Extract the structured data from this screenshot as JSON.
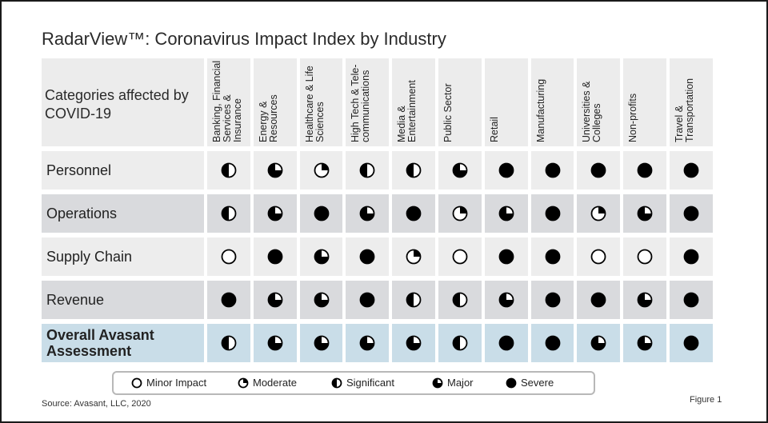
{
  "title": "RadarView™: Coronavirus Impact Index by Industry",
  "category_header": "Categories affected by COVID-19",
  "columns": [
    "Banking, Financial Services & Insurance",
    "Energy & Resources",
    "Healthcare & Life Sciences",
    "High Tech & Tele-communications",
    "Media & Entertainment",
    "Public Sector",
    "Retail",
    "Manufacturing",
    "Universities & Colleges",
    "Non-profits",
    "Travel & Transportation"
  ],
  "rows": [
    {
      "label": "Personnel",
      "ratings": [
        "significant",
        "major",
        "moderate",
        "significant",
        "significant",
        "major",
        "severe",
        "severe",
        "severe",
        "severe",
        "severe"
      ]
    },
    {
      "label": "Operations",
      "ratings": [
        "significant",
        "major",
        "severe",
        "major",
        "severe",
        "moderate",
        "major",
        "severe",
        "moderate",
        "major",
        "severe"
      ]
    },
    {
      "label": "Supply Chain",
      "ratings": [
        "minor",
        "severe",
        "major",
        "severe",
        "moderate",
        "minor",
        "severe",
        "severe",
        "minor",
        "minor",
        "severe"
      ]
    },
    {
      "label": "Revenue",
      "ratings": [
        "severe",
        "major",
        "major",
        "severe",
        "significant",
        "significant",
        "major",
        "severe",
        "severe",
        "major",
        "severe"
      ]
    },
    {
      "label": "Overall Avasant Assessment",
      "ratings": [
        "significant",
        "major",
        "major",
        "major",
        "major",
        "significant",
        "severe",
        "severe",
        "major",
        "major",
        "severe"
      ]
    }
  ],
  "legend": [
    {
      "key": "minor",
      "label": "Minor Impact"
    },
    {
      "key": "moderate",
      "label": "Moderate"
    },
    {
      "key": "significant",
      "label": "Significant"
    },
    {
      "key": "major",
      "label": "Major"
    },
    {
      "key": "severe",
      "label": "Severe"
    }
  ],
  "source": "Source: Avasant, LLC, 2020",
  "figure_label": "Figure 1",
  "colors": {
    "row_light": "#ededed",
    "row_dark": "#d9dadd",
    "row_overall": "#c9dde8",
    "header": "#ececec",
    "ink": "#000000"
  }
}
